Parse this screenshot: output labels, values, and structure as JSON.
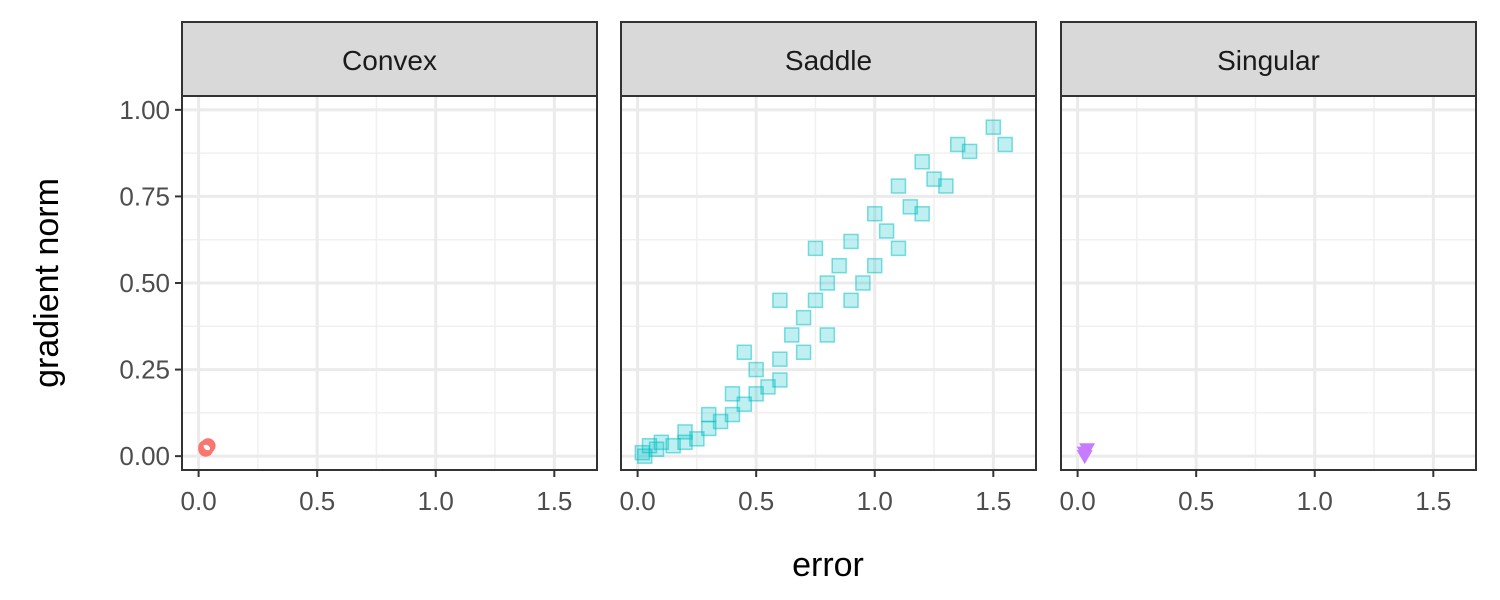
{
  "chart_data": {
    "type": "scatter",
    "x_label": "error",
    "y_label": "gradient norm",
    "xlim": [
      -0.07,
      1.68
    ],
    "ylim": [
      -0.04,
      1.04
    ],
    "xticks": [
      {
        "value": 0,
        "label": "0.0"
      },
      {
        "value": 0.5,
        "label": "0.5"
      },
      {
        "value": 1,
        "label": "1.0"
      },
      {
        "value": 1.5,
        "label": "1.5"
      }
    ],
    "yticks": [
      {
        "value": 0,
        "label": "0.00"
      },
      {
        "value": 0.25,
        "label": "0.25"
      },
      {
        "value": 0.5,
        "label": "0.50"
      },
      {
        "value": 0.75,
        "label": "0.75"
      },
      {
        "value": 1,
        "label": "1.00"
      }
    ],
    "xminor": [
      0.25,
      0.75,
      1.25
    ],
    "yminor": [
      0.125,
      0.375,
      0.625,
      0.875
    ],
    "grid": true,
    "panels": [
      {
        "title": "Convex",
        "color": "#f8766d",
        "marker": "circle",
        "x": [
          0.03,
          0.04,
          0.03
        ],
        "y": [
          0.025,
          0.03,
          0.02
        ]
      },
      {
        "title": "Saddle",
        "color": "#00bfc4",
        "marker": "square",
        "x": [
          0.02,
          0.03,
          0.05,
          0.08,
          0.1,
          0.15,
          0.2,
          0.2,
          0.25,
          0.3,
          0.3,
          0.35,
          0.4,
          0.4,
          0.45,
          0.5,
          0.5,
          0.55,
          0.6,
          0.6,
          0.65,
          0.7,
          0.7,
          0.75,
          0.8,
          0.8,
          0.85,
          0.9,
          0.9,
          0.95,
          1.0,
          1.0,
          1.05,
          1.1,
          1.1,
          1.15,
          1.2,
          1.2,
          1.25,
          1.3,
          1.35,
          1.4,
          1.5,
          1.55,
          0.45,
          0.6,
          0.75
        ],
        "y": [
          0.01,
          0.0,
          0.03,
          0.02,
          0.04,
          0.03,
          0.04,
          0.07,
          0.05,
          0.08,
          0.12,
          0.1,
          0.12,
          0.18,
          0.15,
          0.18,
          0.25,
          0.2,
          0.28,
          0.22,
          0.35,
          0.3,
          0.4,
          0.45,
          0.35,
          0.5,
          0.55,
          0.45,
          0.62,
          0.5,
          0.55,
          0.7,
          0.65,
          0.6,
          0.78,
          0.72,
          0.7,
          0.85,
          0.8,
          0.78,
          0.9,
          0.88,
          0.95,
          0.9,
          0.3,
          0.45,
          0.6
        ]
      },
      {
        "title": "Singular",
        "color": "#c77cff",
        "marker": "triangle-down",
        "x": [
          0.03,
          0.04,
          0.03
        ],
        "y": [
          0.01,
          0.02,
          0.0
        ]
      }
    ]
  }
}
